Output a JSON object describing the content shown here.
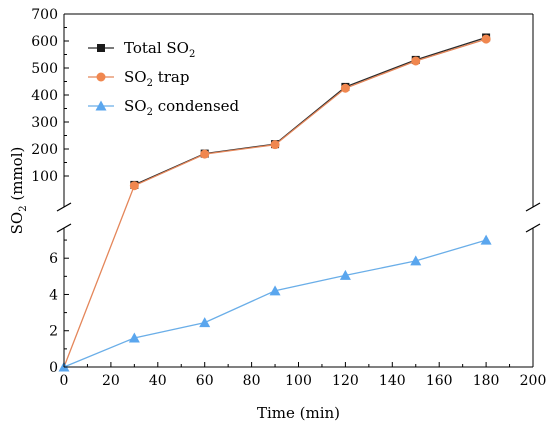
{
  "chart_data": {
    "type": "line",
    "xlabel": "Time (min)",
    "ylabel": {
      "main": "SO",
      "sub": "2",
      "rest": " (mmol)"
    },
    "xlim": [
      0,
      200
    ],
    "x_ticks": [
      0,
      20,
      40,
      60,
      80,
      100,
      120,
      140,
      160,
      180,
      200
    ],
    "y_axis_broken": true,
    "y_lower": {
      "range": [
        0,
        7.5
      ],
      "ticks": [
        0,
        2,
        4,
        6
      ]
    },
    "y_upper": {
      "range": [
        0,
        700
      ],
      "ticks": [
        100,
        200,
        300,
        400,
        500,
        600,
        700
      ]
    },
    "legend": {
      "placement": "top-left"
    },
    "series": [
      {
        "name": {
          "main": "Total SO",
          "sub": "2",
          "rest": ""
        },
        "marker": "square",
        "color": "#1a1a1a",
        "line_color": "#2b2b2b",
        "x": [
          30,
          60,
          90,
          120,
          150,
          180
        ],
        "y": [
          67,
          183,
          218,
          430,
          530,
          613
        ]
      },
      {
        "name": {
          "main": "SO",
          "sub": "2",
          "rest": " trap"
        },
        "marker": "circle",
        "color": "#f0874f",
        "line_color": "#e4865a",
        "x": [
          0,
          30,
          60,
          90,
          120,
          150,
          180
        ],
        "y": [
          0,
          64,
          181,
          216,
          425,
          526,
          607
        ]
      },
      {
        "name": {
          "main": "SO",
          "sub": "2",
          "rest": " condensed"
        },
        "marker": "triangle",
        "color": "#5aa6ee",
        "line_color": "#6aaee8",
        "x": [
          0,
          30,
          60,
          90,
          120,
          150,
          180
        ],
        "y": [
          0,
          1.6,
          2.45,
          4.2,
          5.05,
          5.85,
          7.0
        ]
      }
    ]
  }
}
